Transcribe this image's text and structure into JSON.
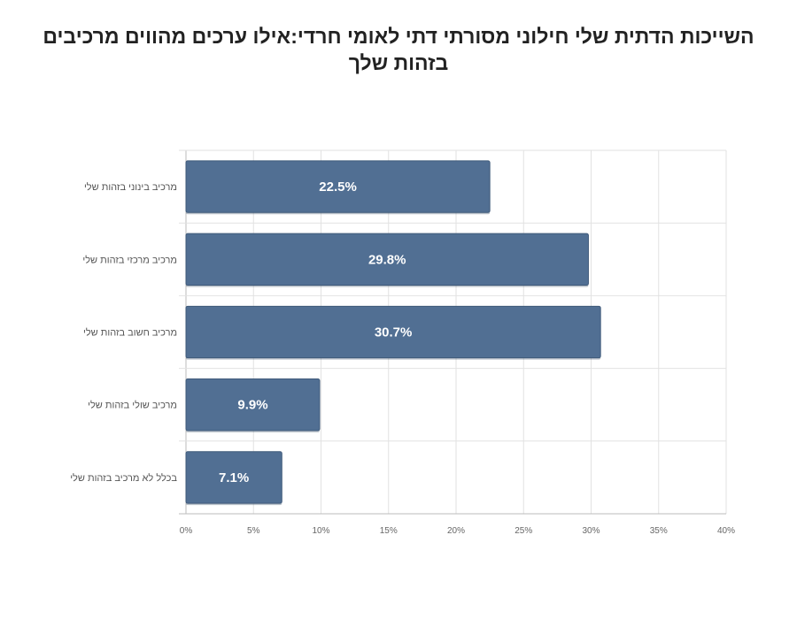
{
  "chart_data": {
    "type": "bar",
    "orientation": "horizontal",
    "title": "השייכות הדתית שלי חילוני מסורתי דתי לאומי חרדי:אילו ערכים מהווים מרכיבים בזהות שלך",
    "categories": [
      "מרכיב בינוני בזהות שלי",
      "מרכיב מרכזי בזהות שלי",
      "מרכיב חשוב בזהות שלי",
      "מרכיב שולי בזהות שלי",
      "בכלל לא מרכיב בזהות שלי"
    ],
    "values": [
      22.5,
      29.8,
      30.7,
      9.9,
      7.1
    ],
    "data_labels": [
      "22.5%",
      "29.8%",
      "30.7%",
      "9.9%",
      "7.1%"
    ],
    "xlim": [
      0,
      40
    ],
    "x_ticks": [
      "0%",
      "5%",
      "10%",
      "15%",
      "20%",
      "25%",
      "30%",
      "35%",
      "40%"
    ],
    "xlabel": "",
    "ylabel": "",
    "grid": true,
    "legend": "none",
    "bar_color": "#516f93"
  }
}
